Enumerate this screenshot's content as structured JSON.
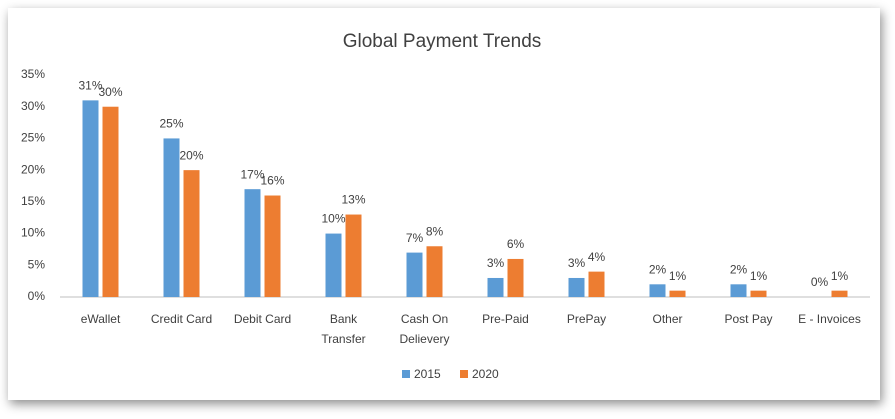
{
  "chart_data": {
    "type": "bar",
    "title": "Global Payment Trends",
    "categories": [
      "eWallet",
      "Credit Card",
      "Debit Card",
      "Bank Transfer",
      "Cash On Delievery",
      "Pre-Paid",
      "PrePay",
      "Other",
      "Post Pay",
      "E - Invoices"
    ],
    "series": [
      {
        "name": "2015",
        "color": "#5b9bd5",
        "values": [
          31,
          25,
          17,
          10,
          7,
          3,
          3,
          2,
          2,
          0
        ],
        "value_labels": [
          "31%",
          "25%",
          "17%",
          "10%",
          "7%",
          "3%",
          "3%",
          "2%",
          "2%",
          "0%"
        ]
      },
      {
        "name": "2020",
        "color": "#ed7d31",
        "values": [
          30,
          20,
          16,
          13,
          8,
          6,
          4,
          1,
          1,
          1
        ],
        "value_labels": [
          "30%",
          "20%",
          "16%",
          "13%",
          "8%",
          "6%",
          "4%",
          "1%",
          "1%",
          "1%"
        ]
      }
    ],
    "ylim": [
      0,
      35
    ],
    "yticks": [
      {
        "value": 0,
        "label": "0%"
      },
      {
        "value": 5,
        "label": "5%"
      },
      {
        "value": 10,
        "label": "10%"
      },
      {
        "value": 15,
        "label": "15%"
      },
      {
        "value": 20,
        "label": "20%"
      },
      {
        "value": 25,
        "label": "25%"
      },
      {
        "value": 30,
        "label": "30%"
      },
      {
        "value": 35,
        "label": "35%"
      }
    ],
    "grid": false,
    "legend": "bottom"
  }
}
